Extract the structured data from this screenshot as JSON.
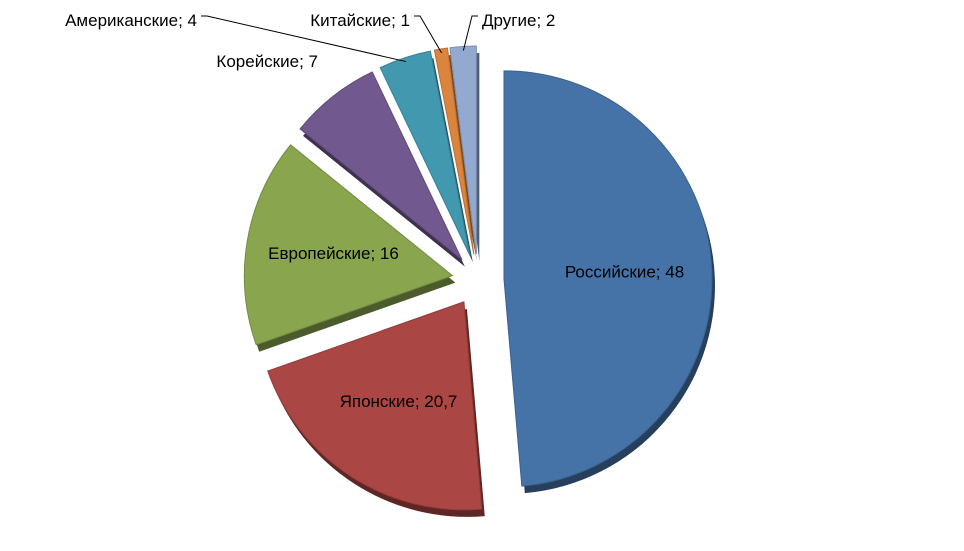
{
  "chart_data": {
    "type": "pie",
    "categories": [
      "Российские",
      "Японские",
      "Европейские",
      "Корейские",
      "Американские",
      "Китайские",
      "Другие"
    ],
    "values": [
      48,
      20.7,
      16,
      7,
      4,
      1,
      2
    ],
    "value_labels": [
      "48",
      "20,7",
      "16",
      "7",
      "4",
      "1",
      "2"
    ],
    "label_separator": "; ",
    "colors": [
      "#4572a7",
      "#aa4643",
      "#89a54e",
      "#71588f",
      "#4198af",
      "#db843d",
      "#93a9cf"
    ]
  }
}
